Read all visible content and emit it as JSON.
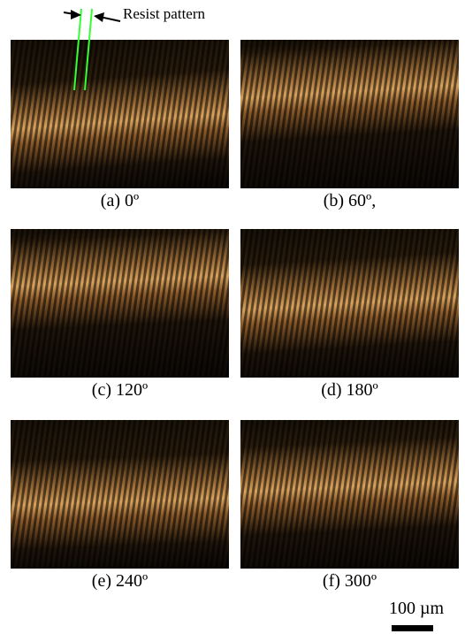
{
  "annotation": "Resist pattern",
  "panels": [
    {
      "caption": "(a) 0º"
    },
    {
      "caption": "(b) 60º,"
    },
    {
      "caption": "(c) 120º"
    },
    {
      "caption": "(d) 180º"
    },
    {
      "caption": "(e) 240º"
    },
    {
      "caption": "(f) 300º"
    }
  ],
  "scale_bar": "100 µm"
}
